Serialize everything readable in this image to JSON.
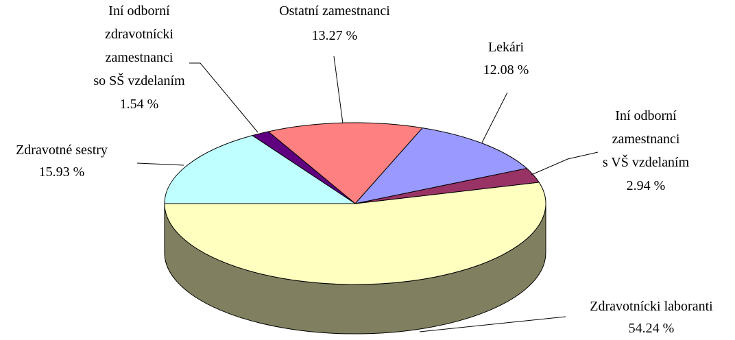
{
  "chart_data": {
    "type": "pie",
    "categories": [
      "Zdravotnícki laboranti",
      "Iní odborní\nzamestnanci\ns VŠ vzdelaním",
      "Lekári",
      "Ostatní zamestnanci",
      "Iní odborní\nzdravotnícki\nzamestnanci\nso SŠ vzdelaním",
      "Zdravotné sestry"
    ],
    "values": [
      54.24,
      2.94,
      12.08,
      13.27,
      1.54,
      15.93
    ],
    "value_labels": [
      "54.24 %",
      "2.94 %",
      "12.08 %",
      "13.27 %",
      "1.54 %",
      "15.93 %"
    ],
    "colors": [
      "#ffffc0",
      "#993366",
      "#9999ff",
      "#ff8080",
      "#600080",
      "#c0ffff"
    ],
    "side_color": "#808060"
  }
}
